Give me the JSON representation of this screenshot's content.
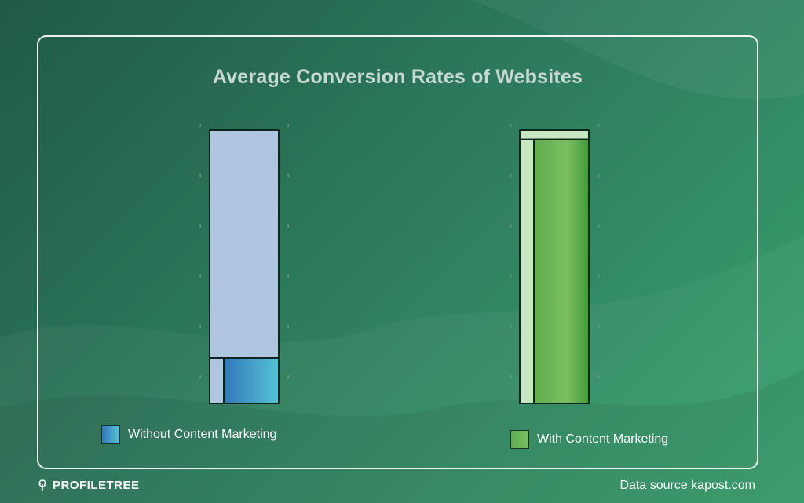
{
  "chart_data": {
    "type": "bar",
    "title": "Average Conversion Rates of Websites",
    "categories": [
      "Without Content Marketing",
      "With Content Marketing"
    ],
    "values": [
      0.5,
      2.9
    ],
    "ylim": [
      0,
      3
    ],
    "legend_placement": "bottom",
    "series": [
      {
        "name": "Without Content Marketing",
        "value": 0.5,
        "color": "#3d86c0"
      },
      {
        "name": "With Content Marketing",
        "value": 2.9,
        "color": "#6ab556"
      }
    ]
  },
  "legend": {
    "without_label": "Without Content Marketing",
    "with_label": "With Content Marketing"
  },
  "footer": {
    "brand_name": "PROFILETREE",
    "source": "Data source kapost.com"
  },
  "colors": {
    "background": "#2d7a5c",
    "bar_track": "#aec6e0",
    "without_fill": "#3d86c0",
    "with_track": "#c6e8c0",
    "with_fill": "#6ab556"
  },
  "icons": {
    "brand_logo": "tree-icon"
  }
}
